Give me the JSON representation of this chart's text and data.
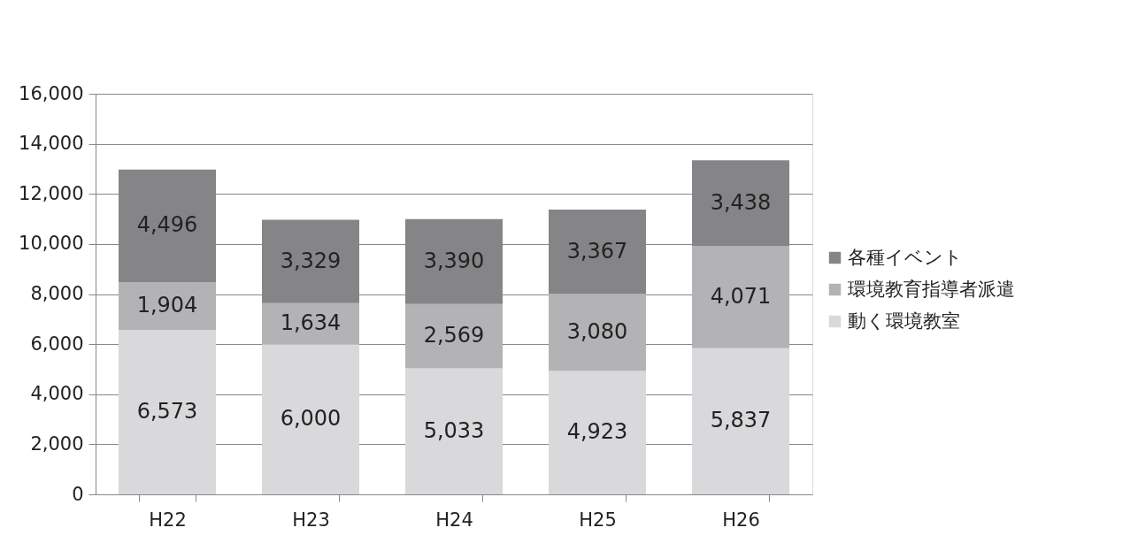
{
  "chart_data": {
    "type": "bar",
    "stacked": true,
    "categories": [
      "H22",
      "H23",
      "H24",
      "H25",
      "H26"
    ],
    "series": [
      {
        "name": "動く環境教室",
        "color": "#d9d9db",
        "values": [
          6573,
          6000,
          5033,
          4923,
          5837
        ],
        "value_labels": [
          "6,573",
          "6,000",
          "5,033",
          "4,923",
          "5,837"
        ]
      },
      {
        "name": "環境教育指導者派遣",
        "color": "#b3b3b6",
        "values": [
          1904,
          1634,
          2569,
          3080,
          4071
        ],
        "value_labels": [
          "1,904",
          "1,634",
          "2,569",
          "3,080",
          "4,071"
        ]
      },
      {
        "name": "各種イベント",
        "color": "#858588",
        "values": [
          4496,
          3329,
          3390,
          3367,
          3438
        ],
        "value_labels": [
          "4,496",
          "3,329",
          "3,390",
          "3,367",
          "3,438"
        ]
      }
    ],
    "ylim": [
      0,
      16000
    ],
    "yticks": [
      {
        "value": 0,
        "label": "0"
      },
      {
        "value": 2000,
        "label": "2,000"
      },
      {
        "value": 4000,
        "label": "4,000"
      },
      {
        "value": 6000,
        "label": "6,000"
      },
      {
        "value": 8000,
        "label": "8,000"
      },
      {
        "value": 10000,
        "label": "10,000"
      },
      {
        "value": 12000,
        "label": "12,000"
      },
      {
        "value": 14000,
        "label": "14,000"
      },
      {
        "value": 16000,
        "label": "16,000"
      }
    ],
    "grid": "y",
    "legend": "right"
  }
}
